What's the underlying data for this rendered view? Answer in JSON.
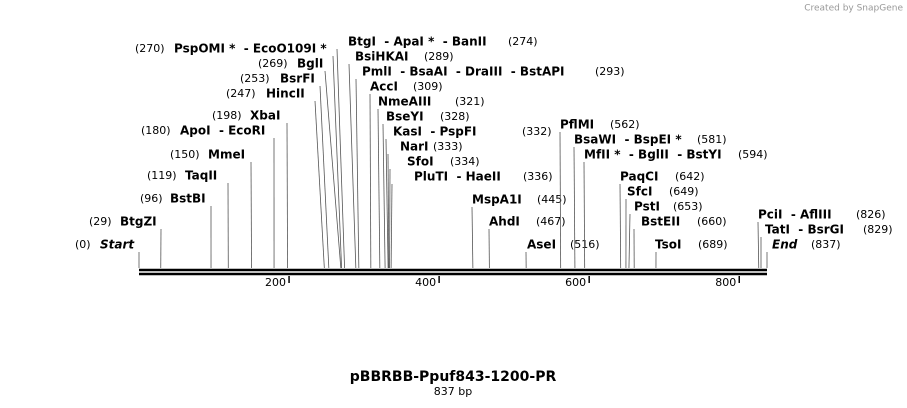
{
  "credit": "Created by SnapGene",
  "title": "pBBRBB-Ppuf843-1200-PR",
  "subtitle": "837 bp",
  "xlim": [
    0,
    837
  ],
  "xticks": [
    200,
    400,
    600,
    800
  ],
  "sites": [
    {
      "name": "Start",
      "position": {
        "value": 0,
        "label": "(0)"
      }
    },
    {
      "name": "BtgZI",
      "position": {
        "value": 29,
        "label": "(29)"
      }
    },
    {
      "name": "BstBI",
      "position": {
        "value": 96,
        "label": "(96)"
      }
    },
    {
      "name": "TaqII",
      "position": {
        "value": 119,
        "label": "(119)"
      }
    },
    {
      "name": "MmeI",
      "position": {
        "value": 150,
        "label": "(150)"
      }
    },
    {
      "name": "ApoI  - EcoRI",
      "position": {
        "value": 180,
        "label": "(180)"
      }
    },
    {
      "name": "XbaI",
      "position": {
        "value": 198,
        "label": "(198)"
      }
    },
    {
      "name": "HincII",
      "position": {
        "value": 247,
        "label": "(247)"
      }
    },
    {
      "name": "BsrFI",
      "position": {
        "value": 253,
        "label": "(253)"
      }
    },
    {
      "name": "BglI",
      "position": {
        "value": 269,
        "label": "(269)"
      }
    },
    {
      "name": "PspOMI *  - EcoO109I *",
      "position": {
        "value": 270,
        "label": "(270)"
      }
    },
    {
      "name": "BtgI  - ApaI *  - BanII",
      "position": {
        "value": 274,
        "label": "(274)"
      }
    },
    {
      "name": "BsiHKAI",
      "position": {
        "value": 289,
        "label": "(289)"
      }
    },
    {
      "name": "PmlI  - BsaAI  - DraIII  - BstAPI",
      "position": {
        "value": 293,
        "label": "(293)"
      }
    },
    {
      "name": "AccI",
      "position": {
        "value": 309,
        "label": "(309)"
      }
    },
    {
      "name": "NmeAIII",
      "position": {
        "value": 321,
        "label": "(321)"
      }
    },
    {
      "name": "BseYI",
      "position": {
        "value": 328,
        "label": "(328)"
      }
    },
    {
      "name": "KasI  - PspFI",
      "position": {
        "value": 332,
        "label": "(332)"
      }
    },
    {
      "name": "NarI",
      "position": {
        "value": 333,
        "label": "(333)"
      }
    },
    {
      "name": "SfoI",
      "position": {
        "value": 334,
        "label": "(334)"
      }
    },
    {
      "name": "PluTI  - HaeII",
      "position": {
        "value": 336,
        "label": "(336)"
      }
    },
    {
      "name": "MspA1I",
      "position": {
        "value": 445,
        "label": "(445)"
      }
    },
    {
      "name": "AhdI",
      "position": {
        "value": 467,
        "label": "(467)"
      }
    },
    {
      "name": "AseI",
      "position": {
        "value": 516,
        "label": "(516)"
      }
    },
    {
      "name": "PflMI",
      "position": {
        "value": 562,
        "label": "(562)"
      }
    },
    {
      "name": "BsaWI  - BspEI *",
      "position": {
        "value": 581,
        "label": "(581)"
      }
    },
    {
      "name": "MfII *  - BglII  - BstYI",
      "position": {
        "value": 594,
        "label": "(594)"
      }
    },
    {
      "name": "PaqCI",
      "position": {
        "value": 642,
        "label": "(642)"
      }
    },
    {
      "name": "SfcI",
      "position": {
        "value": 649,
        "label": "(649)"
      }
    },
    {
      "name": "PstI",
      "position": {
        "value": 653,
        "label": "(653)"
      }
    },
    {
      "name": "BstEII",
      "position": {
        "value": 660,
        "label": "(660)"
      }
    },
    {
      "name": "TsoI",
      "position": {
        "value": 689,
        "label": "(689)"
      }
    },
    {
      "name": "PciI  - AflIII",
      "position": {
        "value": 826,
        "label": "(826)"
      }
    },
    {
      "name": "TatI  - BsrGI",
      "position": {
        "value": 829,
        "label": "(829)"
      }
    },
    {
      "name": "End",
      "position": {
        "value": 837,
        "label": "(837)"
      }
    }
  ]
}
